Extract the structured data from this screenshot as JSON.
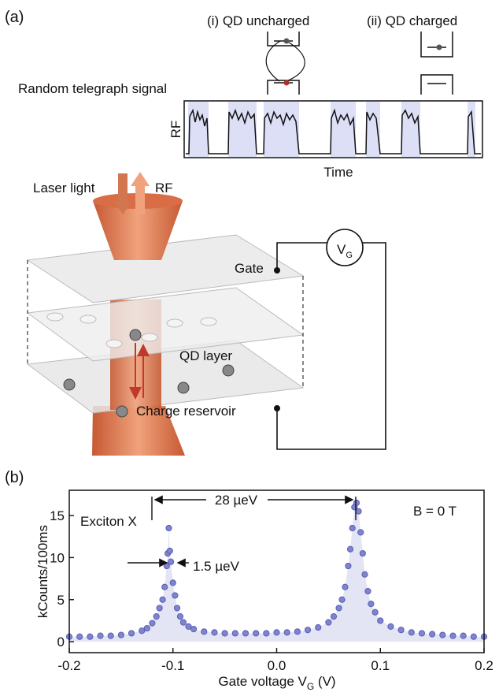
{
  "panel_a": {
    "label": "(a)",
    "state_i": "(i) QD uncharged",
    "state_ii": "(ii) QD charged",
    "rts_label": "Random telegraph signal",
    "rf_axis": "RF",
    "time_axis": "Time",
    "laser": "Laser light",
    "rf": "RF",
    "gate": "Gate",
    "qd_layer": "QD layer",
    "reservoir": "Charge reservoir",
    "vg": "V",
    "vg_sub": "G"
  },
  "chart_data": {
    "type": "scatter",
    "panel_label": "(b)",
    "xlabel": "Gate voltage V",
    "xlabel_sub": "G",
    "xlabel_unit": " (V)",
    "ylabel": "kCounts/100ms",
    "annotations": [
      "Exciton X",
      "28 µeV",
      "1.5 µeV",
      "B = 0 T"
    ],
    "xlim": [
      -0.2,
      0.2
    ],
    "xticks": [
      -0.2,
      -0.1,
      {
        "value": 0,
        "label": "0.0"
      },
      0.1,
      0.2
    ],
    "ylim": [
      -1.3,
      18
    ],
    "yticks": [
      0,
      5,
      10,
      15
    ],
    "series": [
      {
        "color": "#7f84cf",
        "x": [
          -0.2,
          -0.19,
          -0.18,
          -0.17,
          -0.16,
          -0.15,
          -0.14,
          -0.13,
          -0.125,
          -0.12,
          -0.116,
          -0.113,
          -0.11,
          -0.108,
          -0.106,
          -0.105,
          -0.104,
          -0.103,
          -0.102,
          -0.1,
          -0.098,
          -0.096,
          -0.093,
          -0.09,
          -0.085,
          -0.08,
          -0.07,
          -0.06,
          -0.05,
          -0.04,
          -0.03,
          -0.02,
          -0.01,
          0,
          0.01,
          0.02,
          0.03,
          0.04,
          0.05,
          0.055,
          0.06,
          0.063,
          0.066,
          0.069,
          0.071,
          0.073,
          0.075,
          0.077,
          0.079,
          0.081,
          0.083,
          0.085,
          0.088,
          0.091,
          0.095,
          0.1,
          0.11,
          0.12,
          0.13,
          0.14,
          0.15,
          0.16,
          0.17,
          0.18,
          0.19,
          0.2
        ],
        "values": [
          0.6,
          0.6,
          0.6,
          0.7,
          0.7,
          0.8,
          1.0,
          1.3,
          1.6,
          2.2,
          3.0,
          4.0,
          5.0,
          6.5,
          9.0,
          10.5,
          13.5,
          10.8,
          9.5,
          7.0,
          5.5,
          4.0,
          3.0,
          2.3,
          1.8,
          1.5,
          1.2,
          1.1,
          1.0,
          1.0,
          1.0,
          1.0,
          1.0,
          1.1,
          1.1,
          1.2,
          1.4,
          1.7,
          2.3,
          3.0,
          4.0,
          5.0,
          6.5,
          9.0,
          11.0,
          13.5,
          16.0,
          16.5,
          15.5,
          13.0,
          10.5,
          8.0,
          6.0,
          4.5,
          3.5,
          2.5,
          1.8,
          1.4,
          1.1,
          1.0,
          0.9,
          0.8,
          0.7,
          0.7,
          0.6,
          0.6
        ]
      }
    ]
  }
}
